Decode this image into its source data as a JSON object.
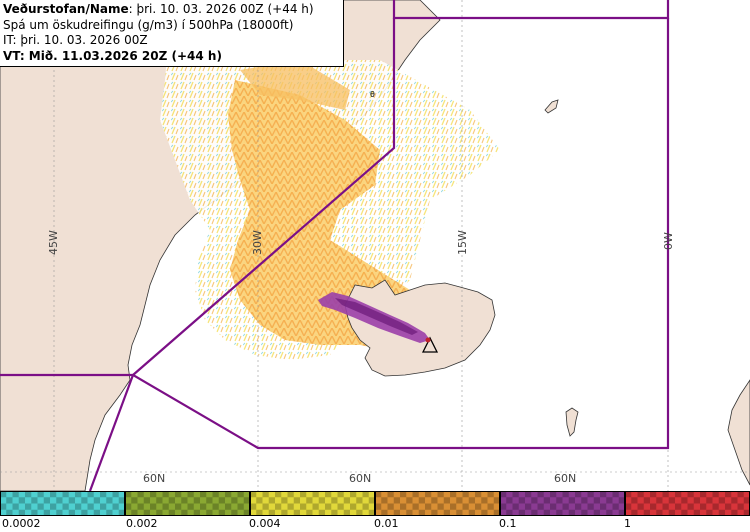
{
  "info": {
    "line1_label": "Veðurstofan/Name",
    "line1_value": ": þri. 10. 03. 2026 00Z (+44 h)",
    "line2": "Spá um öskudreifingu (g/m3) í 500hPa (18000ft)",
    "line3": "IT: þri. 10. 03. 2026 00Z",
    "line4": "VT: Mið. 11.03.2026 20Z (+44 h)"
  },
  "map_labels": {
    "lon_45w": "45W",
    "lon_30w": "30W",
    "lon_15w": "15W",
    "lon_0w": "0W",
    "lat_60n_a": "60N",
    "lat_60n_b": "60N",
    "lat_60n_c": "60N",
    "marker_small": "θ"
  },
  "legend": {
    "labels": [
      "0.0002",
      "0.002",
      "0.004",
      "0.01",
      "0.1",
      "1"
    ],
    "colors": [
      "#4fd0d0",
      "#8aa832",
      "#e1d83a",
      "#d98f34",
      "#8a3a92",
      "#d8343a"
    ]
  },
  "colors": {
    "land": "#f0e0d4",
    "sea": "#ffffff",
    "boundary": "#7b0f86",
    "ash_light": "#fbd37a",
    "ash_orange": "#f6ad4a",
    "ash_purple": "#9b3fa8"
  },
  "volcano_marker": "triangle-warning-icon"
}
